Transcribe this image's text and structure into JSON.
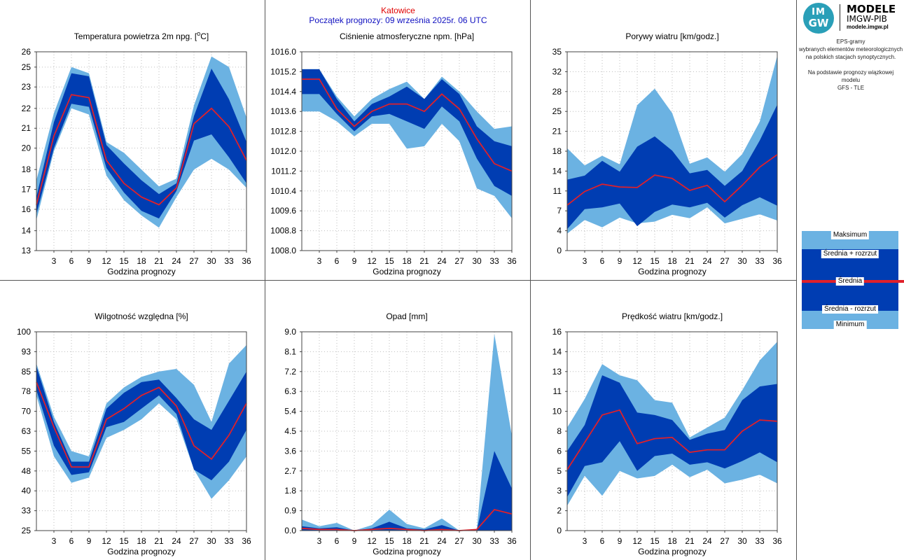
{
  "header": {
    "station": "Katowice",
    "forecast_start": "Początek prognozy: 09 września 2025r. 06 UTC"
  },
  "logo": {
    "badge_top": "IM",
    "badge_bottom": "GW",
    "title": "MODELE",
    "subtitle": "IMGW-PIB",
    "site": "modele.imgw.pl"
  },
  "description": {
    "line1": "EPS-gramy",
    "line2": "wybranych elementów meteorologicznych",
    "line3": "na polskich stacjach synoptycznych.",
    "line4": "Na podstawie prognozy wiązkowej modelu",
    "line5": "GFS - TLE"
  },
  "legend": {
    "max": "Maksimum",
    "mean_plus": "Średnia + rozrzut",
    "mean": "Średnia",
    "mean_minus": "Średnia - rozrzut",
    "min": "Minimum"
  },
  "colors": {
    "range_band": "#6bb2e2",
    "spread_band": "#003db2",
    "mean_line": "#e0202a",
    "grid": "#bdbdbd"
  },
  "chart_data": [
    {
      "type": "area",
      "title": "Temperatura powietrza 2m npg. [oC]",
      "xlabel": "Godzina prognozy",
      "ylabel": "",
      "x": [
        0,
        3,
        6,
        9,
        12,
        15,
        18,
        21,
        24,
        27,
        30,
        33,
        36
      ],
      "xticks": [
        "3",
        "6",
        "9",
        "12",
        "15",
        "18",
        "21",
        "24",
        "27",
        "30",
        "33",
        "36"
      ],
      "ylim": [
        13,
        26
      ],
      "yticks": [
        "13",
        "14",
        "16",
        "17",
        "18",
        "20",
        "21",
        "22",
        "23",
        "25",
        "26"
      ],
      "ytick_values": [
        13,
        14.3,
        15.7,
        17,
        18.3,
        19.7,
        21,
        22.3,
        23.7,
        25,
        26.3
      ],
      "max": [
        17.6,
        22.0,
        25.0,
        24.6,
        20.1,
        19.4,
        18.3,
        17.2,
        17.7,
        22.5,
        25.7,
        25.0,
        21.7
      ],
      "mean_plus": [
        16.5,
        21.4,
        24.6,
        24.4,
        19.9,
        18.7,
        17.6,
        16.7,
        17.4,
        21.8,
        24.9,
        22.9,
        20.1
      ],
      "mean": [
        16.0,
        20.5,
        23.2,
        23.0,
        18.9,
        17.4,
        16.5,
        16.0,
        17.1,
        21.3,
        22.3,
        21.1,
        18.9
      ],
      "mean_minus": [
        15.4,
        19.7,
        22.6,
        22.4,
        18.4,
        16.8,
        15.6,
        15.1,
        16.9,
        20.2,
        20.6,
        19.1,
        17.4
      ],
      "min": [
        15.0,
        19.5,
        22.3,
        21.9,
        17.9,
        16.3,
        15.3,
        14.5,
        16.5,
        18.3,
        19.0,
        18.3,
        17.1
      ]
    },
    {
      "type": "area",
      "title": "Ciśnienie atmosferyczne npm. [hPa]",
      "xlabel": "Godzina prognozy",
      "ylabel": "",
      "x": [
        0,
        3,
        6,
        9,
        12,
        15,
        18,
        21,
        24,
        27,
        30,
        33,
        36
      ],
      "xticks": [
        "3",
        "6",
        "9",
        "12",
        "15",
        "18",
        "21",
        "24",
        "27",
        "30",
        "33",
        "36"
      ],
      "ylim": [
        1008.0,
        1016.0
      ],
      "yticks": [
        "1008.0",
        "1008.8",
        "1009.6",
        "1010.4",
        "1011.2",
        "1012.0",
        "1012.8",
        "1013.6",
        "1014.4",
        "1015.2",
        "1016.0"
      ],
      "ytick_values": [
        1008.0,
        1008.8,
        1009.6,
        1010.4,
        1011.2,
        1012.0,
        1012.8,
        1013.6,
        1014.4,
        1015.2,
        1016.0
      ],
      "max": [
        1015.3,
        1015.3,
        1014.2,
        1013.4,
        1014.1,
        1014.5,
        1014.8,
        1014.1,
        1015.0,
        1014.4,
        1013.6,
        1012.9,
        1013.0
      ],
      "mean_plus": [
        1015.3,
        1015.3,
        1014.1,
        1013.2,
        1013.9,
        1014.2,
        1014.6,
        1014.1,
        1014.9,
        1014.3,
        1013.0,
        1012.4,
        1012.2
      ],
      "mean": [
        1014.9,
        1014.9,
        1013.7,
        1013.0,
        1013.6,
        1013.9,
        1013.9,
        1013.6,
        1014.3,
        1013.7,
        1012.5,
        1011.5,
        1011.2
      ],
      "mean_minus": [
        1014.3,
        1014.3,
        1013.5,
        1012.8,
        1013.4,
        1013.5,
        1013.2,
        1012.9,
        1013.8,
        1013.2,
        1011.7,
        1010.6,
        1010.2
      ],
      "min": [
        1013.6,
        1013.6,
        1013.2,
        1012.6,
        1013.1,
        1013.1,
        1012.1,
        1012.2,
        1013.1,
        1012.4,
        1010.5,
        1010.2,
        1009.3
      ]
    },
    {
      "type": "area",
      "title": "Porywy wiatru [km/godz.]",
      "xlabel": "Godzina prognozy",
      "ylabel": "",
      "x": [
        0,
        3,
        6,
        9,
        12,
        15,
        18,
        21,
        24,
        27,
        30,
        33,
        36
      ],
      "xticks": [
        "3",
        "6",
        "9",
        "12",
        "15",
        "18",
        "21",
        "24",
        "27",
        "30",
        "33",
        "36"
      ],
      "ylim": [
        0,
        35
      ],
      "yticks": [
        "0",
        "4",
        "7",
        "11",
        "14",
        "18",
        "21",
        "25",
        "28",
        "32",
        "35"
      ],
      "ytick_values": [
        0,
        3.5,
        7,
        10.5,
        14,
        17.5,
        21,
        24.5,
        28,
        31.5,
        35
      ],
      "max": [
        18.0,
        15.0,
        16.7,
        15.2,
        25.6,
        28.5,
        24.2,
        15.3,
        16.4,
        13.9,
        17.0,
        22.7,
        34.3
      ],
      "mean_plus": [
        12.5,
        13.2,
        15.8,
        13.9,
        18.3,
        20.1,
        17.6,
        13.6,
        14.2,
        11.4,
        14.0,
        19.4,
        25.7
      ],
      "mean": [
        8.0,
        10.4,
        11.7,
        11.2,
        11.1,
        13.3,
        12.7,
        10.6,
        11.5,
        8.6,
        11.5,
        14.7,
        16.9
      ],
      "mean_minus": [
        3.8,
        7.3,
        7.6,
        8.3,
        4.3,
        6.8,
        8.1,
        7.6,
        8.4,
        5.8,
        8.0,
        9.4,
        7.9
      ],
      "min": [
        3.0,
        5.4,
        4.1,
        5.8,
        4.8,
        5.1,
        6.3,
        5.7,
        7.6,
        4.8,
        5.6,
        6.4,
        5.3
      ]
    },
    {
      "type": "area",
      "title": "Wilgotność względna [%]",
      "xlabel": "Godzina prognozy",
      "ylabel": "",
      "x": [
        0,
        3,
        6,
        9,
        12,
        15,
        18,
        21,
        24,
        27,
        30,
        33,
        36
      ],
      "xticks": [
        "3",
        "6",
        "9",
        "12",
        "15",
        "18",
        "21",
        "24",
        "27",
        "30",
        "33",
        "36"
      ],
      "ylim": [
        25,
        100
      ],
      "yticks": [
        "25",
        "33",
        "40",
        "48",
        "55",
        "63",
        "70",
        "78",
        "85",
        "93",
        "100"
      ],
      "ytick_values": [
        25,
        32.5,
        40,
        47.5,
        55,
        62.5,
        70,
        77.5,
        85,
        92.5,
        100
      ],
      "max": [
        88,
        68,
        55,
        53,
        73,
        79,
        83,
        85,
        86,
        80,
        66,
        88,
        95
      ],
      "mean_plus": [
        87,
        66,
        51,
        51,
        71,
        77,
        81,
        82,
        75,
        67,
        63,
        74,
        85
      ],
      "mean": [
        81,
        64,
        49,
        49,
        67,
        71,
        76,
        79,
        72,
        57,
        52,
        61,
        73
      ],
      "mean_minus": [
        78,
        57,
        46,
        47,
        64,
        66,
        71,
        76,
        69,
        48,
        44,
        51,
        63
      ],
      "min": [
        76,
        53,
        43,
        45,
        60,
        63,
        67,
        73,
        67,
        48,
        37,
        44,
        53
      ]
    },
    {
      "type": "area",
      "title": "Opad [mm]",
      "xlabel": "Godzina prognozy",
      "ylabel": "",
      "x": [
        0,
        3,
        6,
        9,
        12,
        15,
        18,
        21,
        24,
        27,
        30,
        33,
        36
      ],
      "xticks": [
        "3",
        "6",
        "9",
        "12",
        "15",
        "18",
        "21",
        "24",
        "27",
        "30",
        "33",
        "36"
      ],
      "ylim": [
        0,
        9.0
      ],
      "yticks": [
        "0.0",
        "0.9",
        "1.8",
        "2.7",
        "3.6",
        "4.5",
        "5.4",
        "6.3",
        "7.2",
        "8.1",
        "9.0"
      ],
      "ytick_values": [
        0,
        0.9,
        1.8,
        2.7,
        3.6,
        4.5,
        5.4,
        6.3,
        7.2,
        8.1,
        9.0
      ],
      "max": [
        0.5,
        0.2,
        0.35,
        0.0,
        0.25,
        0.95,
        0.3,
        0.1,
        0.55,
        0.0,
        0.05,
        8.9,
        4.3
      ],
      "mean_plus": [
        0.2,
        0.1,
        0.15,
        0.0,
        0.1,
        0.4,
        0.1,
        0.05,
        0.25,
        0.0,
        0.02,
        3.6,
        1.9
      ],
      "mean": [
        0.1,
        0.05,
        0.05,
        0.0,
        0.05,
        0.1,
        0.05,
        0.0,
        0.05,
        0.0,
        0.05,
        0.95,
        0.75
      ],
      "mean_minus": [
        0.0,
        0.0,
        0.0,
        0.0,
        0.0,
        0.0,
        0.0,
        0.0,
        0.0,
        0.0,
        0.0,
        0.0,
        0.0
      ],
      "min": [
        0.0,
        0.0,
        0.0,
        0.0,
        0.0,
        0.0,
        0.0,
        0.0,
        0.0,
        0.0,
        0.0,
        0.0,
        0.0
      ]
    },
    {
      "type": "area",
      "title": "Prędkość wiatru [km/godz.]",
      "xlabel": "Godzina prognozy",
      "ylabel": "",
      "x": [
        0,
        3,
        6,
        9,
        12,
        15,
        18,
        21,
        24,
        27,
        30,
        33,
        36
      ],
      "xticks": [
        "3",
        "6",
        "9",
        "12",
        "15",
        "18",
        "21",
        "24",
        "27",
        "30",
        "33",
        "36"
      ],
      "ylim": [
        0,
        16
      ],
      "yticks": [
        "0",
        "2",
        "3",
        "5",
        "6",
        "8",
        "10",
        "11",
        "13",
        "14",
        "16"
      ],
      "ytick_values": [
        0,
        1.6,
        3.2,
        4.8,
        6.4,
        8.0,
        9.6,
        11.2,
        12.8,
        14.4,
        16.0
      ],
      "max": [
        8.3,
        10.6,
        13.4,
        12.5,
        12.1,
        10.5,
        10.3,
        7.5,
        8.3,
        9.1,
        11.3,
        13.7,
        15.2
      ],
      "mean_plus": [
        6.4,
        8.5,
        12.5,
        11.9,
        9.5,
        9.3,
        8.9,
        7.3,
        7.8,
        8.1,
        10.5,
        11.6,
        11.8
      ],
      "mean": [
        4.9,
        7.1,
        9.3,
        9.7,
        7.0,
        7.4,
        7.5,
        6.3,
        6.5,
        6.5,
        8.0,
        8.9,
        8.8
      ],
      "mean_minus": [
        2.7,
        5.2,
        5.5,
        7.2,
        4.8,
        6.0,
        6.2,
        5.3,
        5.5,
        5.0,
        5.6,
        6.3,
        5.5
      ],
      "min": [
        2.0,
        4.4,
        2.8,
        4.8,
        4.2,
        4.4,
        5.3,
        4.3,
        4.9,
        3.8,
        4.1,
        4.5,
        3.8
      ]
    }
  ]
}
